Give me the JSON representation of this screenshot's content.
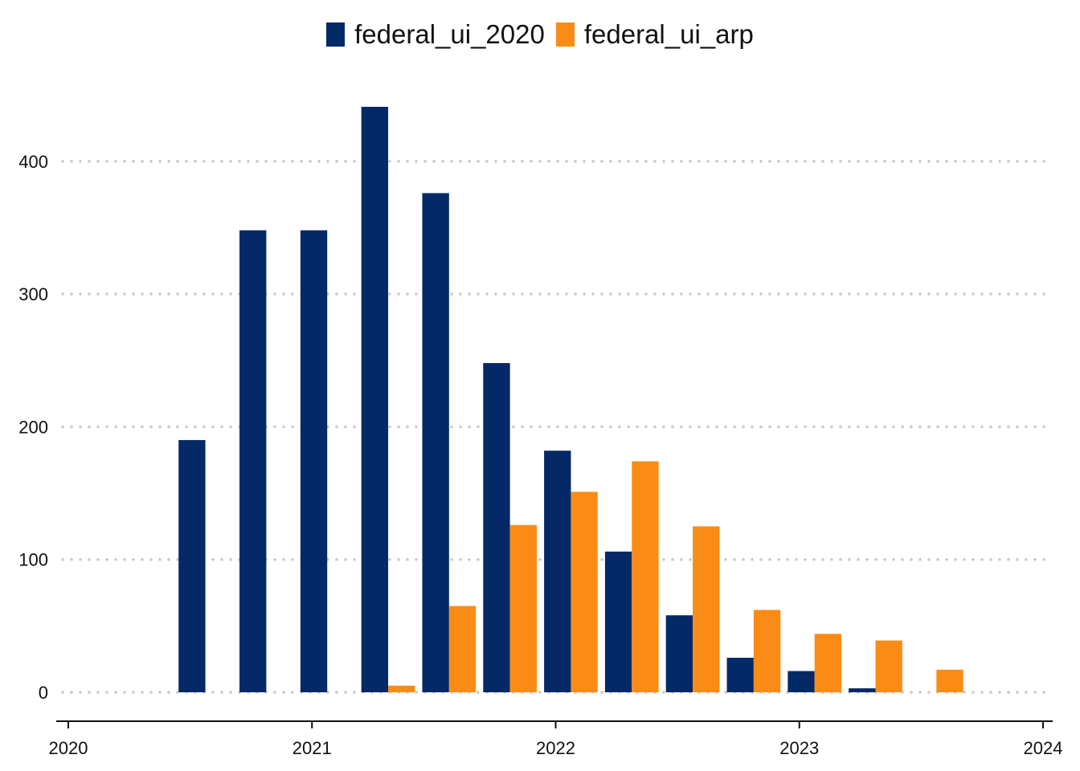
{
  "chart_data": {
    "type": "bar",
    "x": [
      "2020Q3",
      "2020Q4",
      "2021Q1",
      "2021Q2",
      "2021Q3",
      "2021Q4",
      "2022Q1",
      "2022Q2",
      "2022Q3",
      "2022Q4",
      "2023Q1",
      "2023Q2",
      "2023Q3"
    ],
    "series": [
      {
        "name": "federal_ui_2020",
        "color": "#052966",
        "values": [
          190,
          348,
          348,
          441,
          376,
          248,
          182,
          106,
          58,
          26,
          16,
          3,
          0
        ]
      },
      {
        "name": "federal_ui_arp",
        "color": "#FA8C16",
        "values": [
          0,
          0,
          0,
          5,
          65,
          126,
          151,
          174,
          125,
          62,
          44,
          39,
          17
        ]
      }
    ],
    "xlim": [
      2020,
      2024
    ],
    "xticks": [
      "2020",
      "2021",
      "2022",
      "2023",
      "2024"
    ],
    "ylim": [
      0,
      460
    ],
    "yticks": [
      "0",
      "100",
      "200",
      "300",
      "400"
    ],
    "grid": "horizontal dotted",
    "legend": "top-center",
    "title": "",
    "xlabel": "",
    "ylabel": ""
  }
}
